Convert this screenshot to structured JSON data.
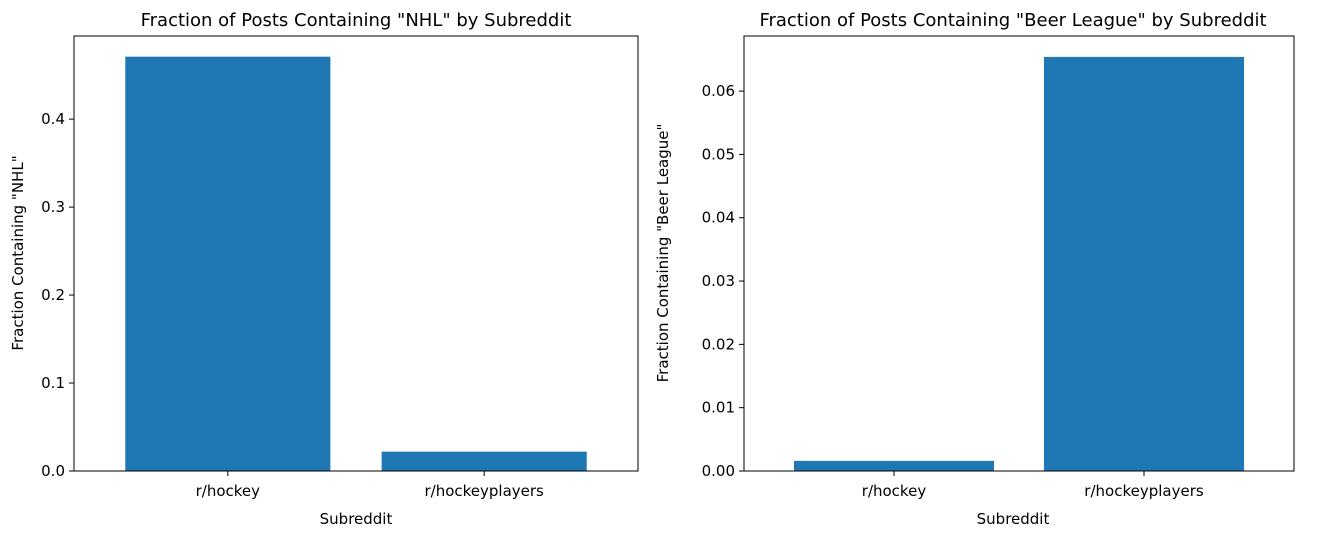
{
  "chart_data": [
    {
      "type": "bar",
      "title": "Fraction of Posts Containing \"NHL\" by Subreddit",
      "xlabel": "Subreddit",
      "ylabel": "Fraction Containing \"NHL\"",
      "categories": [
        "r/hockey",
        "r/hockeyplayers"
      ],
      "values": [
        0.471,
        0.022
      ],
      "ylim": [
        0,
        0.4945
      ],
      "yticks": [
        0.0,
        0.1,
        0.2,
        0.3,
        0.4
      ],
      "ytick_labels": [
        "0.0",
        "0.1",
        "0.2",
        "0.3",
        "0.4"
      ],
      "bar_color": "#1f77b4",
      "grid": false
    },
    {
      "type": "bar",
      "title": "Fraction of Posts Containing \"Beer League\" by Subreddit",
      "xlabel": "Subreddit",
      "ylabel": "Fraction Containing \"Beer League\"",
      "categories": [
        "r/hockey",
        "r/hockeyplayers"
      ],
      "values": [
        0.0016,
        0.0654
      ],
      "ylim": [
        0,
        0.0687
      ],
      "yticks": [
        0.0,
        0.01,
        0.02,
        0.03,
        0.04,
        0.05,
        0.06
      ],
      "ytick_labels": [
        "0.00",
        "0.01",
        "0.02",
        "0.03",
        "0.04",
        "0.05",
        "0.06"
      ],
      "bar_color": "#1f77b4",
      "grid": false
    }
  ]
}
